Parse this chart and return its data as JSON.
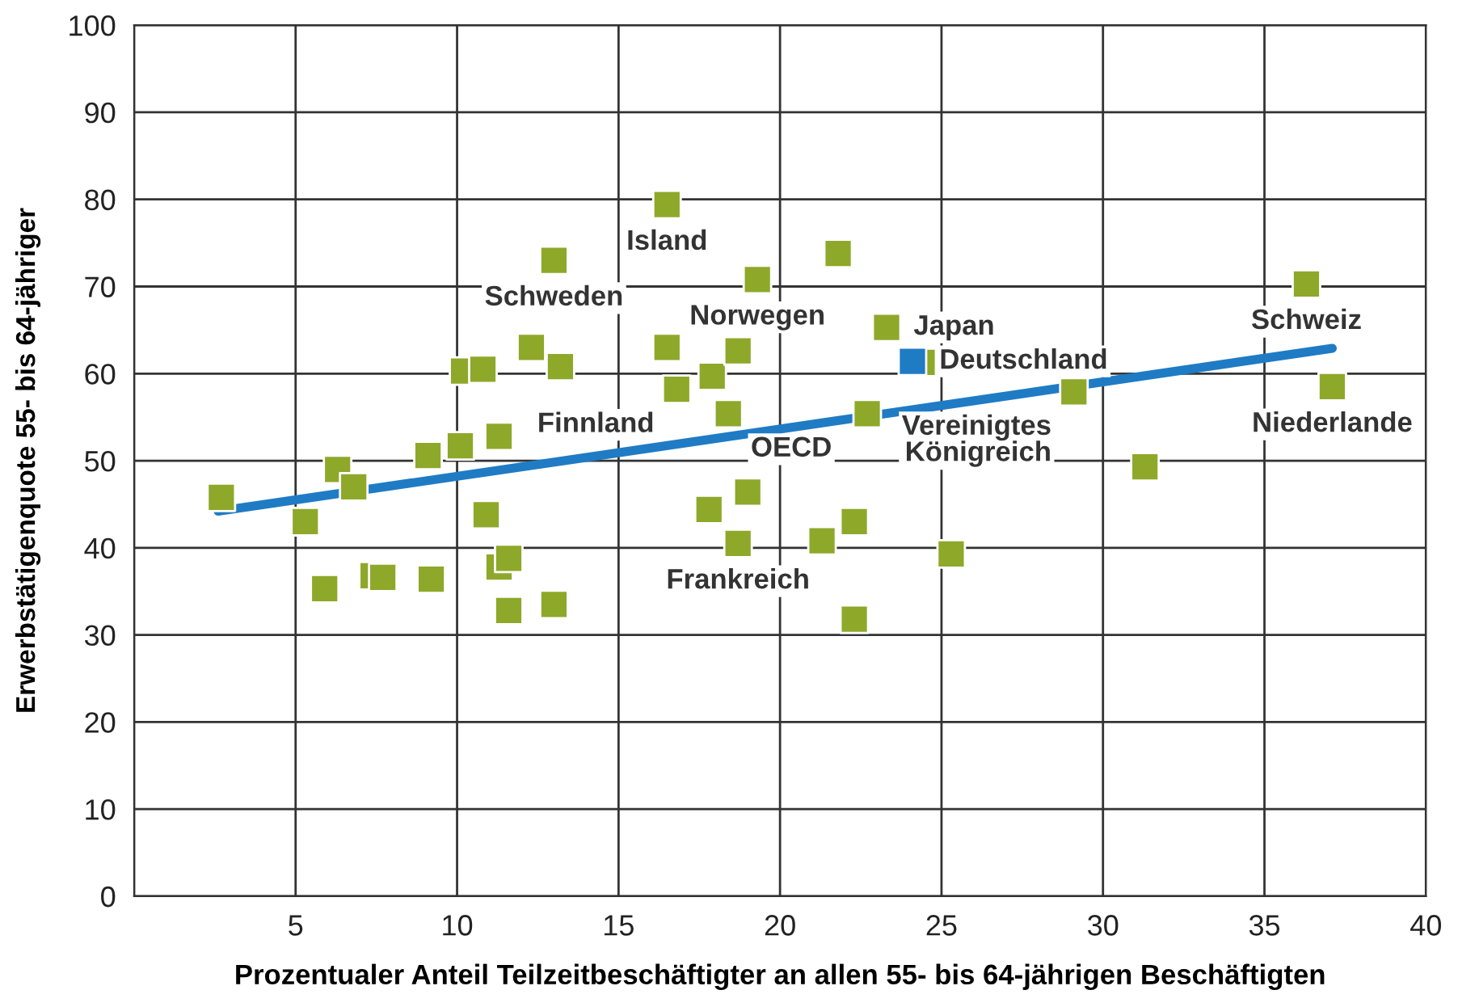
{
  "chart_data": {
    "type": "scatter",
    "xlabel": "Prozentualer Anteil Teilzeitbeschäftigter an allen 55- bis 64-jährigen Beschäftigten",
    "ylabel": "Erwerbstätigenquote 55- bis 64-jähriger",
    "series": [
      {
        "type": "scatter",
        "color": "#8ea82a",
        "x": [
          2.7,
          5.3,
          6.3,
          6.8,
          5.9,
          7.4,
          7.7,
          9.1,
          9.2,
          10.1,
          10.2,
          10.8,
          10.9,
          11.3,
          11.3,
          11.6,
          11.6,
          12.3,
          13.0,
          13.2,
          13.0,
          16.5,
          16.5,
          16.8,
          17.9,
          18.4,
          18.7,
          19.3,
          17.8,
          19.0,
          18.7,
          21.8,
          21.3,
          22.3,
          22.3,
          23.3,
          24.4,
          22.7,
          25.3,
          29.1,
          31.3,
          36.3,
          37.1
        ],
        "values": [
          45.8,
          43,
          49,
          47,
          35.3,
          36.8,
          36.6,
          50.6,
          36.4,
          51.7,
          60.3,
          60.5,
          43.8,
          52.8,
          37.8,
          38.8,
          32.8,
          63,
          73,
          60.8,
          33.5,
          79.4,
          63,
          58.2,
          59.7,
          55.4,
          62.6,
          70.8,
          44.4,
          46.4,
          40.5,
          73.8,
          40.8,
          43,
          31.8,
          65.3,
          61.3,
          55.4,
          39.3,
          57.9,
          49.3,
          70.3,
          58.5
        ]
      },
      {
        "type": "scatter",
        "color": "#1f7bc4",
        "x": [
          24.1
        ],
        "values": [
          61.4
        ]
      },
      {
        "type": "line",
        "marker": "none",
        "color": "#1f7bc4",
        "x": [
          2.6,
          37.1
        ],
        "values": [
          44.2,
          62.9
        ]
      }
    ],
    "annotations": [
      {
        "text": "Island",
        "x": 16.5,
        "y": 79.4
      },
      {
        "text": "Schweden",
        "x": 13.0,
        "y": 73
      },
      {
        "text": "Norwegen",
        "x": 19.3,
        "y": 70.8
      },
      {
        "text": "Japan",
        "x": 23.3,
        "y": 65.3
      },
      {
        "text": "Deutschland",
        "x": 24.1,
        "y": 61.4
      },
      {
        "text": "Finnland",
        "x": 16.8,
        "y": 58.2
      },
      {
        "text": "OECD",
        "x": 18.4,
        "y": 55.4
      },
      {
        "text": "Frankreich",
        "x": 18.7,
        "y": 40.5
      },
      {
        "text": "Vereinigtes\nKönigreich",
        "x": 29.1,
        "y": 57.9
      },
      {
        "text": "Schweiz",
        "x": 36.3,
        "y": 70.3
      },
      {
        "text": "Niederlande",
        "x": 37.1,
        "y": 58.5
      }
    ],
    "xlim": [
      0,
      40
    ],
    "ylim": [
      0,
      100
    ],
    "xticks": [
      {
        "value": 0,
        "label": null
      },
      5,
      10,
      15,
      20,
      25,
      30,
      35,
      40
    ],
    "yticks": [
      0,
      10,
      20,
      30,
      40,
      50,
      60,
      70,
      80,
      90,
      100
    ],
    "grid": true,
    "marker": "square",
    "legend": false
  }
}
